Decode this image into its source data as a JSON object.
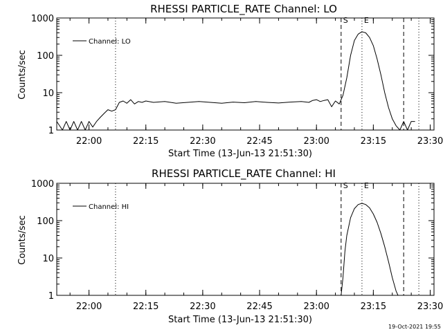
{
  "timestamp": "19-Oct-2021 19:55",
  "chart_data": [
    {
      "type": "line",
      "title": "RHESSI PARTICLE_RATE Channel: LO",
      "xlabel": "Start Time (13-Jun-13 21:51:30)",
      "ylabel": "Counts/sec",
      "yscale": "log",
      "xlim": [
        "21:51:30",
        "23:31:00"
      ],
      "ylim": [
        1,
        1000
      ],
      "xticks": [
        "22:00",
        "22:15",
        "22:30",
        "22:45",
        "23:00",
        "23:15",
        "23:30"
      ],
      "yticks": [
        "1",
        "10",
        "100",
        "1000"
      ],
      "legend": {
        "position": "top-left",
        "label": "Channel: LO"
      },
      "markers": [
        {
          "time": "22:07:00",
          "style": "dotted",
          "label": ""
        },
        {
          "time": "23:06:30",
          "style": "dashed",
          "label": "S"
        },
        {
          "time": "23:12:00",
          "style": "dotted",
          "label": "E"
        },
        {
          "time": "23:23:00",
          "style": "dashed",
          "label": ""
        },
        {
          "time": "23:27:00",
          "style": "dotted",
          "label": ""
        }
      ],
      "series": [
        {
          "name": "Channel: LO",
          "x": [
            "21:51:30",
            "21:53:00",
            "21:54:00",
            "21:55:00",
            "21:56:00",
            "21:57:00",
            "21:58:00",
            "21:59:00",
            "22:00:00",
            "22:01:00",
            "22:02:00",
            "22:03:00",
            "22:04:00",
            "22:05:00",
            "22:06:00",
            "22:07:00",
            "22:08:00",
            "22:09:00",
            "22:10:00",
            "22:11:00",
            "22:12:00",
            "22:13:00",
            "22:14:00",
            "22:15:00",
            "22:17:00",
            "22:20:00",
            "22:23:00",
            "22:26:00",
            "22:29:00",
            "22:32:00",
            "22:35:00",
            "22:38:00",
            "22:41:00",
            "22:44:00",
            "22:47:00",
            "22:50:00",
            "22:53:00",
            "22:56:00",
            "22:58:00",
            "22:59:00",
            "23:00:00",
            "23:01:00",
            "23:02:00",
            "23:03:00",
            "23:04:00",
            "23:05:00",
            "23:06:00",
            "23:07:00",
            "23:08:00",
            "23:09:00",
            "23:10:00",
            "23:11:00",
            "23:12:00",
            "23:13:00",
            "23:14:00",
            "23:15:00",
            "23:16:00",
            "23:17:00",
            "23:18:00",
            "23:19:00",
            "23:20:00",
            "23:21:00",
            "23:22:00",
            "23:23:00",
            "23:24:00",
            "23:25:00",
            "23:26:00"
          ],
          "y": [
            1.7,
            1,
            1.7,
            1,
            1.7,
            1,
            1.7,
            1,
            1.7,
            1.2,
            1.7,
            2.2,
            2.8,
            3.5,
            3.2,
            3.5,
            5.5,
            6,
            5.2,
            6.5,
            5,
            5.8,
            5.5,
            6,
            5.5,
            5.8,
            5.2,
            5.5,
            5.8,
            5.5,
            5.2,
            5.6,
            5.4,
            5.8,
            5.5,
            5.3,
            5.6,
            5.8,
            5.5,
            6.2,
            6.5,
            5.8,
            6.2,
            6.5,
            4.2,
            6,
            5,
            8.5,
            25,
            100,
            250,
            370,
            430,
            400,
            300,
            180,
            80,
            30,
            10,
            4,
            2,
            1.3,
            1,
            1.7,
            1,
            1.7,
            1.7
          ]
        }
      ]
    },
    {
      "type": "line",
      "title": "RHESSI PARTICLE_RATE Channel: HI",
      "xlabel": "Start Time (13-Jun-13 21:51:30)",
      "ylabel": "Counts/sec",
      "yscale": "log",
      "xlim": [
        "21:51:30",
        "23:31:00"
      ],
      "ylim": [
        1,
        1000
      ],
      "xticks": [
        "22:00",
        "22:15",
        "22:30",
        "22:45",
        "23:00",
        "23:15",
        "23:30"
      ],
      "yticks": [
        "1",
        "10",
        "100",
        "1000"
      ],
      "legend": {
        "position": "top-left",
        "label": "Channel: HI"
      },
      "markers": [
        {
          "time": "22:07:00",
          "style": "dotted",
          "label": ""
        },
        {
          "time": "23:06:30",
          "style": "dashed",
          "label": "S"
        },
        {
          "time": "23:12:00",
          "style": "dotted",
          "label": "E"
        },
        {
          "time": "23:23:00",
          "style": "dashed",
          "label": ""
        },
        {
          "time": "23:27:00",
          "style": "dotted",
          "label": ""
        }
      ],
      "series": [
        {
          "name": "Channel: HI",
          "x": [
            "23:06:30",
            "23:07:00",
            "23:07:30",
            "23:08:00",
            "23:09:00",
            "23:10:00",
            "23:11:00",
            "23:12:00",
            "23:13:00",
            "23:14:00",
            "23:15:00",
            "23:16:00",
            "23:17:00",
            "23:18:00",
            "23:19:00",
            "23:20:00",
            "23:21:00",
            "23:21:30"
          ],
          "y": [
            1,
            3,
            15,
            40,
            120,
            210,
            270,
            290,
            270,
            220,
            150,
            90,
            45,
            20,
            8,
            3,
            1.3,
            1
          ]
        }
      ]
    }
  ]
}
